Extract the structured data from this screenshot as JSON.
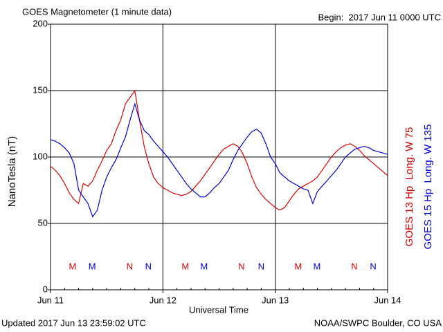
{
  "chart_data": {
    "type": "line",
    "title": "GOES Magnetometer (1 minute data)",
    "subtitle": "Begin:  2017 Jun 11 0000 UTC",
    "ylabel": "NanoTesla (nT)",
    "xlabel": "Universal Time",
    "footer_left": "Updated 2017 Jun 13 23:59:02 UTC",
    "footer_right": "NOAA/SWPC Boulder, CO USA",
    "xlim": [
      0,
      72
    ],
    "xticks": [
      {
        "value": 0,
        "label": "Jun 11"
      },
      {
        "value": 24,
        "label": "Jun 12"
      },
      {
        "value": 48,
        "label": "Jun 13"
      },
      {
        "value": 72,
        "label": "Jun 14"
      }
    ],
    "ylim": [
      0,
      200
    ],
    "yticks": [
      0,
      50,
      100,
      150,
      200
    ],
    "grid": true,
    "x": [
      0,
      1,
      2,
      3,
      4,
      5,
      6,
      7,
      8,
      9,
      10,
      11,
      12,
      13,
      14,
      15,
      16,
      17,
      18,
      19,
      20,
      21,
      22,
      23,
      24,
      25,
      26,
      27,
      28,
      29,
      30,
      31,
      32,
      33,
      34,
      35,
      36,
      37,
      38,
      39,
      40,
      41,
      42,
      43,
      44,
      45,
      46,
      47,
      48,
      49,
      50,
      51,
      52,
      53,
      54,
      55,
      56,
      57,
      58,
      59,
      60,
      61,
      62,
      63,
      64,
      65,
      66,
      67,
      68,
      69,
      70,
      71,
      72
    ],
    "series": [
      {
        "name": "GOES 13 Hp  Long. W 75",
        "color": "#dd0000",
        "values": [
          93,
          90,
          86,
          80,
          73,
          68,
          65,
          80,
          78,
          82,
          90,
          97,
          105,
          110,
          120,
          128,
          140,
          145,
          150,
          128,
          108,
          95,
          85,
          80,
          77,
          75,
          73,
          72,
          71,
          72,
          74,
          78,
          82,
          87,
          92,
          97,
          102,
          106,
          108,
          110,
          108,
          103,
          95,
          85,
          77,
          72,
          68,
          65,
          62,
          60,
          62,
          67,
          72,
          76,
          78,
          80,
          82,
          85,
          90,
          95,
          100,
          104,
          107,
          109,
          110,
          108,
          105,
          101,
          98,
          95,
          92,
          89,
          86
        ]
      },
      {
        "name": "GOES 15 Hp  Long. W 135",
        "color": "#0000dd",
        "values": [
          113,
          112,
          110,
          107,
          103,
          95,
          75,
          70,
          65,
          55,
          60,
          75,
          85,
          92,
          98,
          107,
          115,
          128,
          140,
          128,
          120,
          117,
          112,
          108,
          104,
          100,
          95,
          90,
          85,
          80,
          76,
          73,
          70,
          70,
          73,
          77,
          80,
          85,
          90,
          98,
          105,
          110,
          115,
          119,
          121,
          118,
          110,
          100,
          95,
          88,
          85,
          82,
          80,
          78,
          76,
          75,
          65,
          74,
          78,
          82,
          86,
          90,
          95,
          100,
          103,
          106,
          107,
          108,
          107,
          105,
          104,
          103,
          102
        ]
      }
    ],
    "annotations": [
      {
        "text": "M",
        "x": 4.7,
        "color": "#dd0000"
      },
      {
        "text": "M",
        "x": 8.9,
        "color": "#0000dd"
      },
      {
        "text": "N",
        "x": 16.9,
        "color": "#dd0000"
      },
      {
        "text": "N",
        "x": 20.9,
        "color": "#0000dd"
      },
      {
        "text": "M",
        "x": 28.8,
        "color": "#dd0000"
      },
      {
        "text": "M",
        "x": 32.8,
        "color": "#0000dd"
      },
      {
        "text": "N",
        "x": 40.8,
        "color": "#dd0000"
      },
      {
        "text": "N",
        "x": 45.0,
        "color": "#0000dd"
      },
      {
        "text": "M",
        "x": 52.9,
        "color": "#dd0000"
      },
      {
        "text": "M",
        "x": 56.9,
        "color": "#0000dd"
      },
      {
        "text": "N",
        "x": 64.9,
        "color": "#dd0000"
      },
      {
        "text": "N",
        "x": 68.9,
        "color": "#0000dd"
      }
    ]
  }
}
